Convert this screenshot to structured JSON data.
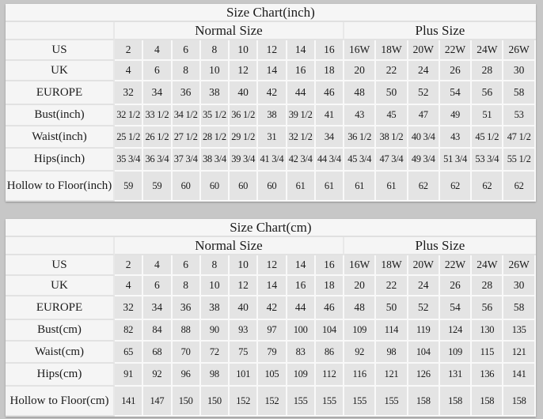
{
  "colors": {
    "page_background": "#c7c7c7",
    "table_light_cell": "#f5f5f5",
    "data_cell_gray": "#e4e4e4",
    "grid_line_white": "#f9f9f9",
    "grid_line_gray": "#e2e2e2",
    "text": "#1b1b1b"
  },
  "chart_data": [
    {
      "type": "table",
      "title": "Size Chart(inch)",
      "group_headers": {
        "normal": "Normal Size",
        "plus": "Plus Size"
      },
      "rows": [
        {
          "label": "US",
          "normal": [
            "2",
            "4",
            "6",
            "8",
            "10",
            "12",
            "14",
            "16"
          ],
          "plus": [
            "16W",
            "18W",
            "20W",
            "22W",
            "24W",
            "26W"
          ]
        },
        {
          "label": "UK",
          "normal": [
            "4",
            "6",
            "8",
            "10",
            "12",
            "14",
            "16",
            "18"
          ],
          "plus": [
            "20",
            "22",
            "24",
            "26",
            "28",
            "30"
          ]
        },
        {
          "label": "EUROPE",
          "normal": [
            "32",
            "34",
            "36",
            "38",
            "40",
            "42",
            "44",
            "46"
          ],
          "plus": [
            "48",
            "50",
            "52",
            "54",
            "56",
            "58"
          ]
        },
        {
          "label": "Bust(inch)",
          "normal": [
            "32 1/2",
            "33 1/2",
            "34 1/2",
            "35 1/2",
            "36 1/2",
            "38",
            "39 1/2",
            "41"
          ],
          "plus": [
            "43",
            "45",
            "47",
            "49",
            "51",
            "53"
          ]
        },
        {
          "label": "Waist(inch)",
          "normal": [
            "25 1/2",
            "26 1/2",
            "27 1/2",
            "28 1/2",
            "29 1/2",
            "31",
            "32 1/2",
            "34"
          ],
          "plus": [
            "36 1/2",
            "38 1/2",
            "40 3/4",
            "43",
            "45 1/2",
            "47 1/2"
          ]
        },
        {
          "label": "Hips(inch)",
          "normal": [
            "35 3/4",
            "36 3/4",
            "37 3/4",
            "38 3/4",
            "39 3/4",
            "41 3/4",
            "42 3/4",
            "44 3/4"
          ],
          "plus": [
            "45 3/4",
            "47 3/4",
            "49 3/4",
            "51 3/4",
            "53 3/4",
            "55 1/2"
          ]
        },
        {
          "label": "Hollow to Floor(inch)",
          "normal": [
            "59",
            "59",
            "60",
            "60",
            "60",
            "60",
            "61",
            "61"
          ],
          "plus": [
            "61",
            "61",
            "62",
            "62",
            "62",
            "62"
          ]
        }
      ]
    },
    {
      "type": "table",
      "title": "Size Chart(cm)",
      "group_headers": {
        "normal": "Normal Size",
        "plus": "Plus Size"
      },
      "rows": [
        {
          "label": "US",
          "normal": [
            "2",
            "4",
            "6",
            "8",
            "10",
            "12",
            "14",
            "16"
          ],
          "plus": [
            "16W",
            "18W",
            "20W",
            "22W",
            "24W",
            "26W"
          ]
        },
        {
          "label": "UK",
          "normal": [
            "4",
            "6",
            "8",
            "10",
            "12",
            "14",
            "16",
            "18"
          ],
          "plus": [
            "20",
            "22",
            "24",
            "26",
            "28",
            "30"
          ]
        },
        {
          "label": "EUROPE",
          "normal": [
            "32",
            "34",
            "36",
            "38",
            "40",
            "42",
            "44",
            "46"
          ],
          "plus": [
            "48",
            "50",
            "52",
            "54",
            "56",
            "58"
          ]
        },
        {
          "label": "Bust(cm)",
          "normal": [
            "82",
            "84",
            "88",
            "90",
            "93",
            "97",
            "100",
            "104"
          ],
          "plus": [
            "109",
            "114",
            "119",
            "124",
            "130",
            "135"
          ]
        },
        {
          "label": "Waist(cm)",
          "normal": [
            "65",
            "68",
            "70",
            "72",
            "75",
            "79",
            "83",
            "86"
          ],
          "plus": [
            "92",
            "98",
            "104",
            "109",
            "115",
            "121"
          ]
        },
        {
          "label": "Hips(cm)",
          "normal": [
            "91",
            "92",
            "96",
            "98",
            "101",
            "105",
            "109",
            "112"
          ],
          "plus": [
            "116",
            "121",
            "126",
            "131",
            "136",
            "141"
          ]
        },
        {
          "label": "Hollow to Floor(cm)",
          "normal": [
            "141",
            "147",
            "150",
            "150",
            "152",
            "152",
            "155",
            "155"
          ],
          "plus": [
            "155",
            "155",
            "158",
            "158",
            "158",
            "158"
          ]
        }
      ]
    }
  ]
}
